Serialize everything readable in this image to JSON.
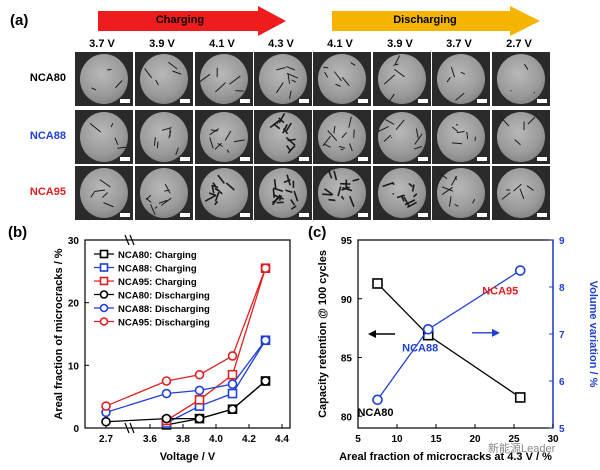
{
  "panel_a": {
    "label": "(a)",
    "arrows": {
      "charging": "Charging",
      "discharging": "Discharging"
    },
    "voltages": [
      "3.7 V",
      "3.9 V",
      "4.1 V",
      "4.3 V",
      "4.1 V",
      "3.9 V",
      "3.7 V",
      "2.7 V"
    ],
    "rows": [
      {
        "name": "NCA80",
        "color": "#000000"
      },
      {
        "name": "NCA88",
        "color": "#1f3fd6"
      },
      {
        "name": "NCA95",
        "color": "#e02020"
      }
    ]
  },
  "panel_b": {
    "label": "(b)"
  },
  "panel_c": {
    "label": "(c)"
  },
  "watermark": "新能源Leader",
  "chart_data": [
    {
      "type": "line",
      "ylabel": "Areal fraction of microcracks / %",
      "xlabel": "Voltage / V",
      "xticks": [
        "2.7",
        "3.6",
        "3.8",
        "4.0",
        "4.2",
        "4.4"
      ],
      "yticks": [
        "0",
        "10",
        "20",
        "30"
      ],
      "ylim": [
        0,
        30
      ],
      "legend_position": "top-left",
      "series": [
        {
          "name": "NCA80: Charging",
          "marker": "square",
          "color": "#000000",
          "x": [
            3.7,
            3.9,
            4.1,
            4.3
          ],
          "y": [
            0.5,
            1.5,
            3.0,
            7.5
          ]
        },
        {
          "name": "NCA88: Charging",
          "marker": "square",
          "color": "#1f3fd6",
          "x": [
            3.7,
            3.9,
            4.1,
            4.3
          ],
          "y": [
            0.8,
            3.5,
            5.5,
            14.0
          ]
        },
        {
          "name": "NCA95: Charging",
          "marker": "square",
          "color": "#e02020",
          "x": [
            3.7,
            3.9,
            4.1,
            4.3
          ],
          "y": [
            1.2,
            4.5,
            8.5,
            25.5
          ]
        },
        {
          "name": "NCA80: Discharging",
          "marker": "circle",
          "color": "#000000",
          "x": [
            2.7,
            3.7,
            3.9,
            4.1,
            4.3
          ],
          "y": [
            1.0,
            1.5,
            1.5,
            3.0,
            7.5
          ]
        },
        {
          "name": "NCA88: Discharging",
          "marker": "circle",
          "color": "#1f3fd6",
          "x": [
            2.7,
            3.7,
            3.9,
            4.1,
            4.3
          ],
          "y": [
            2.5,
            5.5,
            6.0,
            7.0,
            14.0
          ]
        },
        {
          "name": "NCA95: Discharging",
          "marker": "circle",
          "color": "#e02020",
          "x": [
            2.7,
            3.7,
            3.9,
            4.1,
            4.3
          ],
          "y": [
            3.5,
            7.5,
            8.5,
            11.5,
            25.5
          ]
        }
      ]
    },
    {
      "type": "scatter",
      "xlabel": "Areal fraction of microcracks at 4.3 V / %",
      "ylabel": "Capacity retention @ 100 cycles",
      "y2label": "Volume variation / %",
      "xticks": [
        "5",
        "10",
        "15",
        "20",
        "25",
        "30"
      ],
      "yticks": [
        "80",
        "85",
        "90",
        "95"
      ],
      "y2ticks": [
        "5",
        "6",
        "7",
        "8",
        "9"
      ],
      "xlim": [
        5,
        30
      ],
      "ylim": [
        79,
        95
      ],
      "y2lim": [
        5,
        9
      ],
      "series": [
        {
          "name": "Capacity retention",
          "axis": "left",
          "color": "#000000",
          "marker": "square",
          "x": [
            7.5,
            14.0,
            25.8
          ],
          "y": [
            91.3,
            86.9,
            81.6
          ]
        },
        {
          "name": "Volume variation",
          "axis": "right",
          "color": "#1f3fd6",
          "marker": "circle",
          "x": [
            7.5,
            14.0,
            25.8
          ],
          "y": [
            5.6,
            7.1,
            8.35
          ]
        }
      ],
      "annotations": [
        {
          "text": "NCA80",
          "color": "#000000"
        },
        {
          "text": "NCA88",
          "color": "#1f3fd6"
        },
        {
          "text": "NCA95",
          "color": "#e02020"
        }
      ]
    }
  ]
}
